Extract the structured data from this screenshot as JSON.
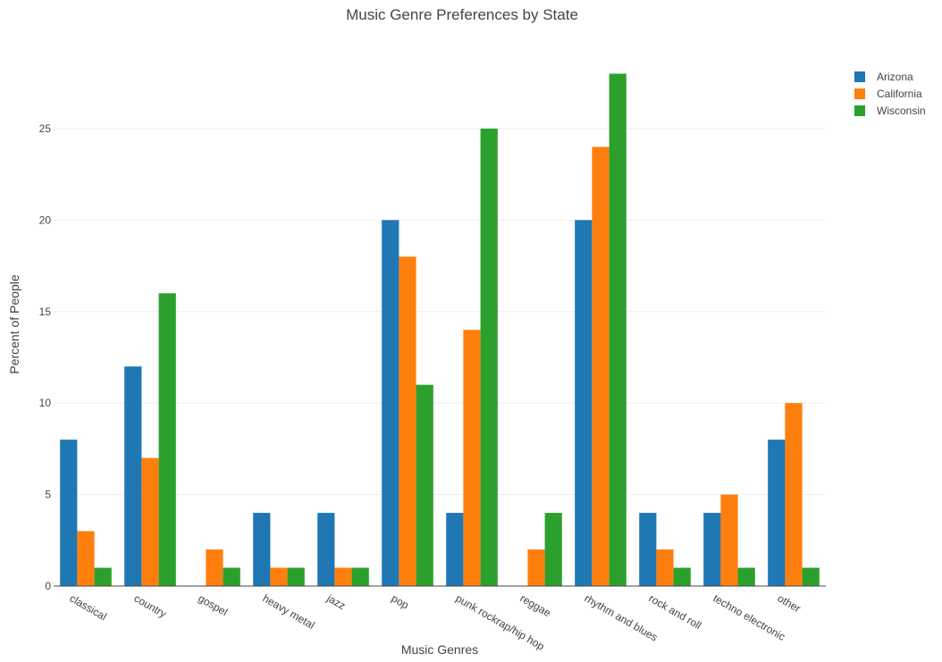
{
  "chart_data": {
    "type": "bar",
    "title": "Music Genre Preferences by State",
    "xlabel": "Music Genres",
    "ylabel": "Percent of People",
    "ylim": [
      0,
      29
    ],
    "yticks": [
      0,
      5,
      10,
      15,
      20,
      25
    ],
    "grid": true,
    "legend_position": "top-right",
    "categories": [
      "classical",
      "country",
      "gospel",
      "heavy metal",
      "jazz",
      "pop",
      "punk rockrap/hip hop",
      "reggae",
      "rhythm and blues",
      "rock and roll",
      "techno electronic",
      "other"
    ],
    "series": [
      {
        "name": "Arizona",
        "color": "#1f77b4",
        "values": [
          8,
          12,
          0,
          4,
          4,
          20,
          4,
          0,
          20,
          4,
          4,
          8
        ]
      },
      {
        "name": "California",
        "color": "#ff7f0e",
        "values": [
          3,
          7,
          2,
          1,
          1,
          18,
          14,
          2,
          24,
          2,
          5,
          10
        ]
      },
      {
        "name": "Wisconsin",
        "color": "#2ca02c",
        "values": [
          1,
          16,
          1,
          1,
          1,
          11,
          25,
          4,
          28,
          1,
          1,
          1
        ]
      }
    ]
  }
}
